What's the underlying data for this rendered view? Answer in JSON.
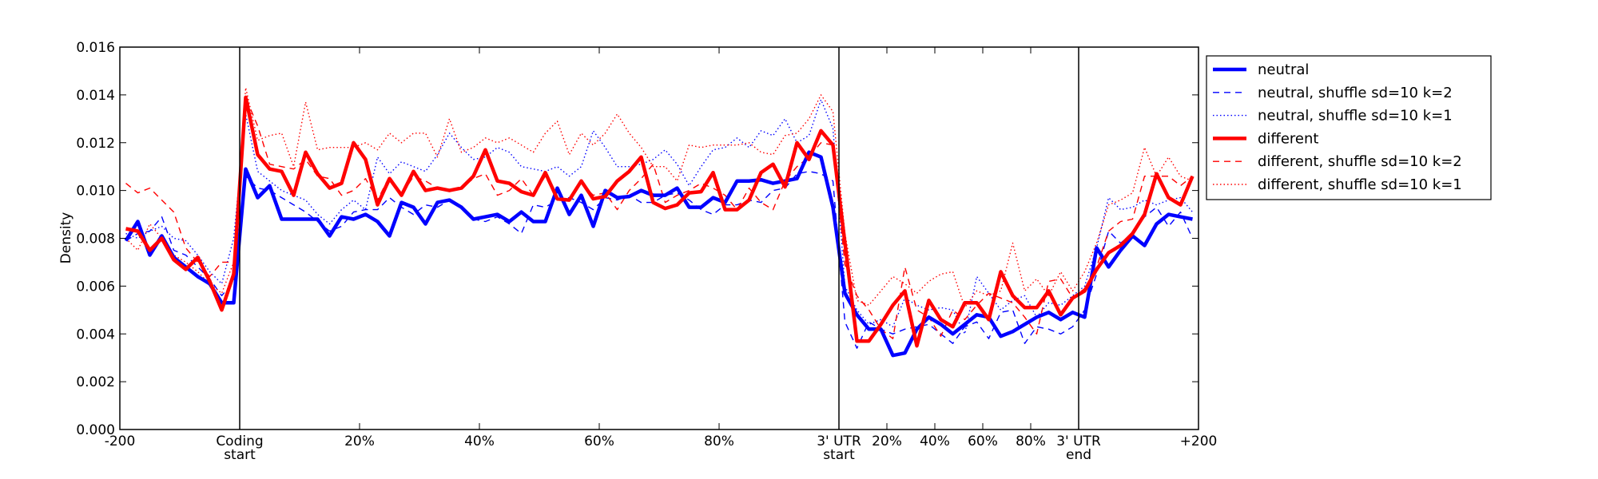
{
  "chart_data": {
    "type": "line",
    "title": "",
    "xlabel": "",
    "ylabel": "Density",
    "xlim": [
      0,
      90
    ],
    "ylim": [
      0,
      0.016
    ],
    "grid": false,
    "legend_position": "outside-top-right",
    "yticks": [
      0,
      0.002,
      0.004,
      0.006,
      0.008,
      0.01,
      0.012,
      0.014,
      0.016
    ],
    "ytick_labels": [
      "0.000",
      "0.002",
      "0.004",
      "0.006",
      "0.008",
      "0.010",
      "0.012",
      "0.014",
      "0.016"
    ],
    "xticks": [
      {
        "pos": 0,
        "label": [
          "-200"
        ]
      },
      {
        "pos": 10,
        "label": [
          "Coding",
          "start"
        ]
      },
      {
        "pos": 20,
        "label": [
          "20%"
        ]
      },
      {
        "pos": 30,
        "label": [
          "40%"
        ]
      },
      {
        "pos": 40,
        "label": [
          "60%"
        ]
      },
      {
        "pos": 50,
        "label": [
          "80%"
        ]
      },
      {
        "pos": 60,
        "label": [
          "3' UTR",
          "start"
        ]
      },
      {
        "pos": 64,
        "label": [
          "20%"
        ]
      },
      {
        "pos": 68,
        "label": [
          "40%"
        ]
      },
      {
        "pos": 72,
        "label": [
          "60%"
        ]
      },
      {
        "pos": 76,
        "label": [
          "80%"
        ]
      },
      {
        "pos": 80,
        "label": [
          "3' UTR",
          "end"
        ]
      },
      {
        "pos": 90,
        "label": [
          "+200"
        ]
      }
    ],
    "region_boundaries": [
      10,
      60,
      80
    ],
    "series": [
      {
        "name": "neutral",
        "color": "#0000ff",
        "style": "solid",
        "thick": true,
        "values": [
          0.0079,
          0.0087,
          0.0073,
          0.0081,
          0.0072,
          0.0068,
          0.0064,
          0.0061,
          0.0053,
          0.0053,
          0.0109,
          0.0097,
          0.0102,
          0.0088,
          0.0088,
          0.0088,
          0.0088,
          0.0081,
          0.0089,
          0.0088,
          0.009,
          0.0087,
          0.0081,
          0.0095,
          0.0093,
          0.0086,
          0.0095,
          0.0096,
          0.0093,
          0.0088,
          0.0089,
          0.009,
          0.0087,
          0.0091,
          0.0087,
          0.0087,
          0.0101,
          0.009,
          0.0098,
          0.0085,
          0.01,
          0.0097,
          0.00975,
          0.01,
          0.0098,
          0.0098,
          0.0101,
          0.0093,
          0.0093,
          0.0097,
          0.0095,
          0.0104,
          0.0104,
          0.01045,
          0.0103,
          0.0104,
          0.0105,
          0.0116,
          0.0114,
          0.0093,
          0.0057,
          0.0048,
          0.0042,
          0.0042,
          0.0031,
          0.0032,
          0.0042,
          0.0047,
          0.0044,
          0.004,
          0.0044,
          0.0048,
          0.0047,
          0.0039,
          0.0041,
          0.0044,
          0.0047,
          0.0049,
          0.0046,
          0.0049,
          0.0047,
          0.0076,
          0.0068,
          0.0075,
          0.0081,
          0.0077,
          0.0086,
          0.009,
          0.0089,
          0.0088
        ]
      },
      {
        "name": "neutral, shuffle sd=10 k=2",
        "color": "#0000ff",
        "style": "dashed",
        "thick": false,
        "values": [
          0.0079,
          0.0082,
          0.0083,
          0.0089,
          0.0075,
          0.0073,
          0.0068,
          0.0063,
          0.0056,
          0.0062,
          0.0106,
          0.0101,
          0.01,
          0.0097,
          0.0094,
          0.0091,
          0.0087,
          0.0083,
          0.0085,
          0.0091,
          0.0092,
          0.0092,
          0.0097,
          0.0093,
          0.009,
          0.0094,
          0.0093,
          0.0096,
          0.0093,
          0.0088,
          0.0087,
          0.0089,
          0.0086,
          0.0082,
          0.0094,
          0.0093,
          0.0096,
          0.0097,
          0.0095,
          0.0092,
          0.0097,
          0.0096,
          0.0098,
          0.0095,
          0.0095,
          0.0098,
          0.0099,
          0.0096,
          0.0092,
          0.009,
          0.0094,
          0.0094,
          0.0096,
          0.0095,
          0.01,
          0.0101,
          0.0107,
          0.0108,
          0.0107,
          0.0104,
          0.0045,
          0.0034,
          0.0045,
          0.0042,
          0.004,
          0.0042,
          0.0043,
          0.0044,
          0.004,
          0.0036,
          0.0043,
          0.0045,
          0.0038,
          0.0049,
          0.005,
          0.0036,
          0.0043,
          0.0042,
          0.004,
          0.0043,
          0.005,
          0.0065,
          0.0083,
          0.0078,
          0.0082,
          0.0089,
          0.0093,
          0.0085,
          0.0091,
          0.008
        ]
      },
      {
        "name": "neutral, shuffle sd=10 k=1",
        "color": "#0000ff",
        "style": "dotted",
        "thick": false,
        "values": [
          0.0082,
          0.008,
          0.0083,
          0.0085,
          0.008,
          0.0079,
          0.0073,
          0.0066,
          0.0061,
          0.008,
          0.0132,
          0.0108,
          0.0104,
          0.01,
          0.0098,
          0.0096,
          0.009,
          0.0086,
          0.0092,
          0.0096,
          0.0092,
          0.0114,
          0.0107,
          0.0112,
          0.011,
          0.0108,
          0.0115,
          0.0124,
          0.0118,
          0.0113,
          0.0114,
          0.0118,
          0.0116,
          0.011,
          0.0109,
          0.0108,
          0.011,
          0.0106,
          0.011,
          0.0125,
          0.0118,
          0.011,
          0.011,
          0.0111,
          0.0113,
          0.0117,
          0.0111,
          0.0102,
          0.011,
          0.0117,
          0.0118,
          0.0122,
          0.0118,
          0.0125,
          0.0123,
          0.013,
          0.012,
          0.0123,
          0.0138,
          0.0126,
          0.006,
          0.005,
          0.0044,
          0.0046,
          0.0043,
          0.0055,
          0.0052,
          0.005,
          0.0051,
          0.005,
          0.004,
          0.0064,
          0.0057,
          0.005,
          0.0054,
          0.0056,
          0.0047,
          0.0053,
          0.0052,
          0.0056,
          0.006,
          0.0076,
          0.0097,
          0.0092,
          0.0093,
          0.0096,
          0.0094,
          0.0096,
          0.0097,
          0.0091
        ]
      },
      {
        "name": "different",
        "color": "#ff0000",
        "style": "solid",
        "thick": true,
        "values": [
          0.0084,
          0.0083,
          0.0075,
          0.008,
          0.0071,
          0.0067,
          0.0072,
          0.0062,
          0.005,
          0.0065,
          0.0139,
          0.0115,
          0.0109,
          0.0108,
          0.0098,
          0.0116,
          0.0107,
          0.0101,
          0.0103,
          0.012,
          0.0113,
          0.0094,
          0.0105,
          0.0098,
          0.0108,
          0.01,
          0.0101,
          0.01,
          0.0101,
          0.0106,
          0.0117,
          0.0104,
          0.0103,
          0.00995,
          0.0098,
          0.01075,
          0.00965,
          0.0096,
          0.0104,
          0.00965,
          0.00975,
          0.0104,
          0.0108,
          0.0114,
          0.0095,
          0.00925,
          0.0094,
          0.0099,
          0.00995,
          0.01075,
          0.0092,
          0.0092,
          0.0096,
          0.01075,
          0.0111,
          0.01015,
          0.012,
          0.0113,
          0.0125,
          0.0119,
          0.0078,
          0.0037,
          0.0037,
          0.0044,
          0.0052,
          0.0058,
          0.0035,
          0.0054,
          0.0046,
          0.0043,
          0.0053,
          0.0053,
          0.0046,
          0.0066,
          0.0056,
          0.0051,
          0.0051,
          0.0058,
          0.0048,
          0.0055,
          0.0058,
          0.0067,
          0.0074,
          0.0077,
          0.0082,
          0.009,
          0.0107,
          0.0097,
          0.0094,
          0.0106
        ]
      },
      {
        "name": "different, shuffle sd=10 k=2",
        "color": "#ff0000",
        "style": "dashed",
        "thick": false,
        "values": [
          0.0103,
          0.0099,
          0.0101,
          0.0096,
          0.0091,
          0.0076,
          0.007,
          0.0064,
          0.007,
          0.007,
          0.0139,
          0.0127,
          0.0111,
          0.011,
          0.0109,
          0.0113,
          0.0106,
          0.0105,
          0.0098,
          0.01,
          0.0105,
          0.0096,
          0.0106,
          0.0098,
          0.0106,
          0.0104,
          0.0101,
          0.01,
          0.0101,
          0.0105,
          0.0107,
          0.0098,
          0.01,
          0.0105,
          0.0098,
          0.0106,
          0.0096,
          0.0096,
          0.0103,
          0.0098,
          0.0099,
          0.0092,
          0.01,
          0.0105,
          0.0111,
          0.0095,
          0.0098,
          0.01,
          0.0103,
          0.0101,
          0.0098,
          0.0092,
          0.0101,
          0.0095,
          0.0092,
          0.0104,
          0.011,
          0.0114,
          0.012,
          0.0119,
          0.0069,
          0.0056,
          0.005,
          0.0042,
          0.0038,
          0.0068,
          0.005,
          0.0047,
          0.0039,
          0.005,
          0.0046,
          0.0052,
          0.0057,
          0.0055,
          0.0053,
          0.0047,
          0.004,
          0.0062,
          0.0063,
          0.0055,
          0.0059,
          0.0068,
          0.0083,
          0.0087,
          0.0088,
          0.0106,
          0.0106,
          0.0106,
          0.0102,
          0.0106
        ]
      },
      {
        "name": "different, shuffle sd=10 k=1",
        "color": "#ff0000",
        "style": "dotted",
        "thick": false,
        "values": [
          0.008,
          0.0075,
          0.0086,
          0.008,
          0.0073,
          0.007,
          0.0066,
          0.0061,
          0.0057,
          0.007,
          0.0143,
          0.0121,
          0.0123,
          0.0124,
          0.011,
          0.0137,
          0.0117,
          0.0118,
          0.0118,
          0.0118,
          0.012,
          0.0117,
          0.0124,
          0.012,
          0.0124,
          0.0124,
          0.0114,
          0.013,
          0.0116,
          0.0118,
          0.0122,
          0.012,
          0.0122,
          0.0119,
          0.0116,
          0.0124,
          0.0129,
          0.0115,
          0.0124,
          0.0119,
          0.0124,
          0.0132,
          0.0124,
          0.0118,
          0.011,
          0.011,
          0.0104,
          0.0119,
          0.0118,
          0.0119,
          0.0119,
          0.0119,
          0.012,
          0.0116,
          0.0115,
          0.0123,
          0.0124,
          0.013,
          0.014,
          0.0133,
          0.0082,
          0.0054,
          0.0052,
          0.0058,
          0.0064,
          0.0061,
          0.0057,
          0.0062,
          0.0065,
          0.0066,
          0.0051,
          0.0058,
          0.0056,
          0.0058,
          0.0078,
          0.0058,
          0.0063,
          0.0056,
          0.0066,
          0.0058,
          0.0066,
          0.0078,
          0.0094,
          0.0096,
          0.0099,
          0.0118,
          0.0106,
          0.0114,
          0.0106,
          0.0104
        ]
      }
    ]
  }
}
